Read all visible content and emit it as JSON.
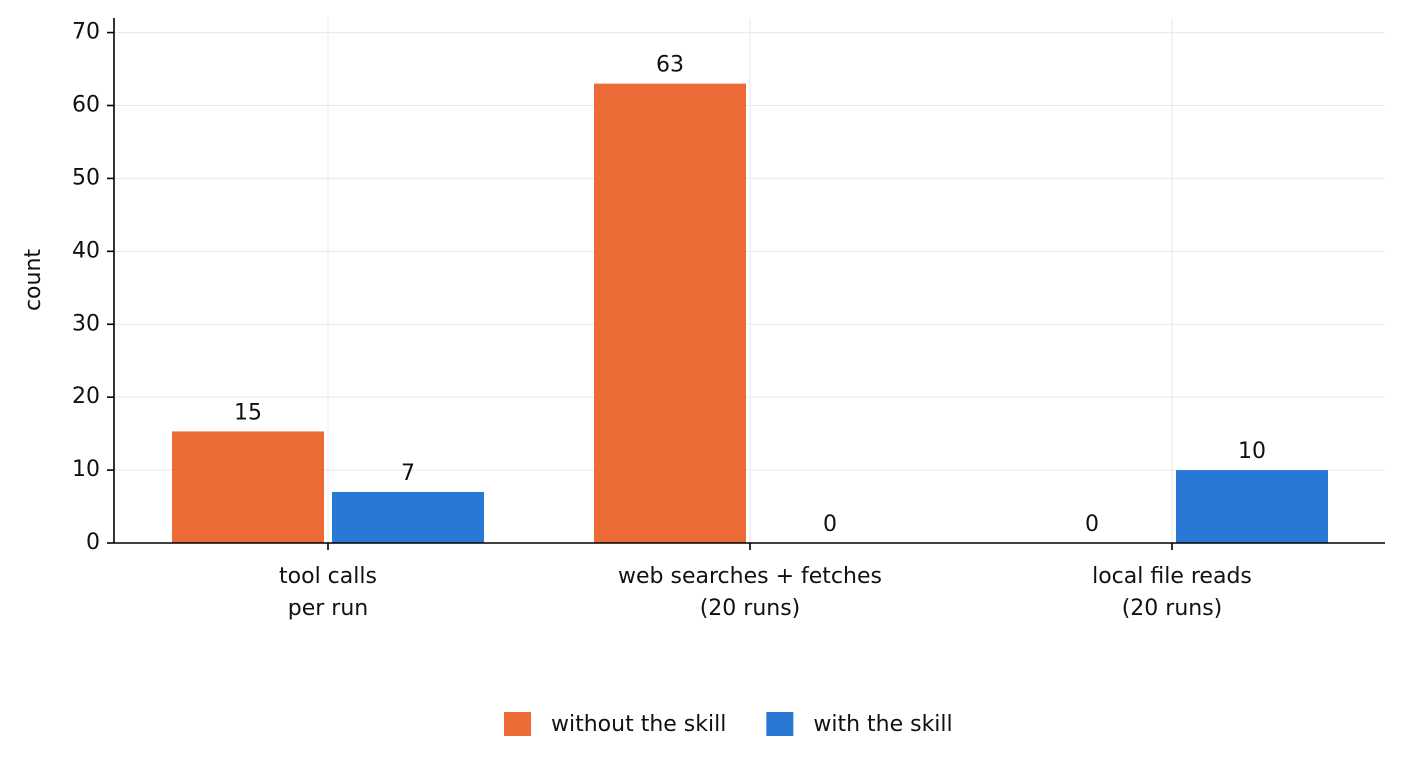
{
  "chart_data": {
    "type": "bar",
    "ylabel": "count",
    "categories": [
      [
        "tool calls",
        "per run"
      ],
      [
        "web searches + fetches",
        "(20 runs)"
      ],
      [
        "local file reads",
        "(20 runs)"
      ]
    ],
    "series": [
      {
        "name": "without the skill",
        "color": "#eb6a36",
        "values": [
          15.3,
          63,
          0
        ],
        "value_labels": [
          "15",
          "63",
          "0"
        ]
      },
      {
        "name": "with the skill",
        "color": "#2a78d6",
        "values": [
          7,
          0,
          10
        ]
      }
    ],
    "ylim": [
      0,
      72
    ],
    "yticks": [
      0,
      10,
      20,
      30,
      40,
      50,
      60,
      70
    ],
    "grid": true,
    "legend": "bottom"
  }
}
